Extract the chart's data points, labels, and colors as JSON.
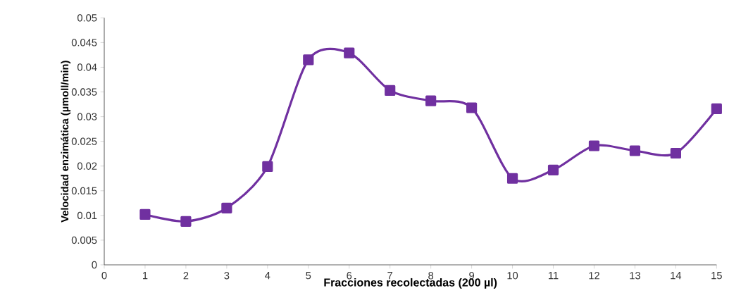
{
  "chart_data": {
    "type": "line",
    "xlabel": "Fracciones recolectadas (200 µl)",
    "ylabel": "Velocidad enzimática  (µmoll/min)",
    "x": [
      1,
      2,
      3,
      4,
      5,
      6,
      7,
      8,
      9,
      10,
      11,
      12,
      13,
      14,
      15
    ],
    "series": [
      {
        "color": "#7030a0",
        "values": [
          0.0102,
          0.0088,
          0.0115,
          0.0199,
          0.0415,
          0.0429,
          0.0353,
          0.0332,
          0.0318,
          0.0175,
          0.0192,
          0.0241,
          0.0231,
          0.0226,
          0.0316
        ]
      }
    ],
    "xlim": [
      0,
      15
    ],
    "xticks": [
      0,
      1,
      2,
      3,
      4,
      5,
      6,
      7,
      8,
      9,
      10,
      11,
      12,
      13,
      14,
      15
    ],
    "ylim": [
      0,
      0.05
    ],
    "yticks": [
      0,
      0.005,
      0.01,
      0.015,
      0.02,
      0.025,
      0.03,
      0.035,
      0.04,
      0.045,
      0.05
    ],
    "grid": false,
    "marker": "square",
    "line_style": "solid"
  }
}
